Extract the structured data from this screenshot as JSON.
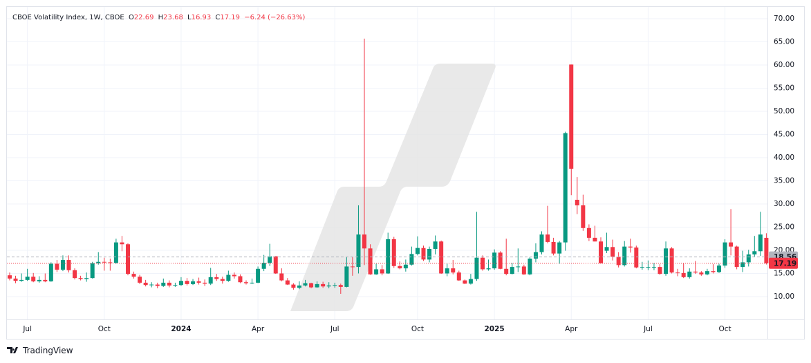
{
  "chart_data": {
    "type": "candlestick",
    "title": "CBOE Volatility Index, 1W, CBOE",
    "ohlc_labels": [
      "O",
      "H",
      "L",
      "C"
    ],
    "ohlc_values": [
      22.69,
      23.68,
      16.93,
      17.19
    ],
    "change": "−6.24 (−26.63%)",
    "categories": [
      null,
      null,
      null,
      "Jul",
      null,
      null,
      null,
      null,
      null,
      null,
      null,
      null,
      null,
      null,
      null,
      null,
      "Oct",
      null,
      null,
      null,
      null,
      null,
      null,
      null,
      null,
      null,
      null,
      null,
      null,
      "2024",
      null,
      null,
      null,
      null,
      null,
      null,
      null,
      null,
      null,
      null,
      null,
      null,
      "Apr",
      null,
      null,
      null,
      null,
      null,
      null,
      null,
      null,
      null,
      null,
      null,
      null,
      "Jul",
      null,
      null,
      null,
      null,
      null,
      null,
      null,
      null,
      null,
      null,
      null,
      null,
      null,
      "Oct",
      null,
      null,
      null,
      null,
      null,
      null,
      null,
      null,
      null,
      null,
      null,
      null,
      "2025",
      null,
      null,
      null,
      null,
      null,
      null,
      null,
      null,
      null,
      null,
      null,
      null,
      "Apr",
      null,
      null,
      null,
      null,
      null,
      null,
      null,
      null,
      null,
      null,
      null,
      null,
      "Jul",
      null,
      null,
      null,
      null,
      null,
      null,
      null,
      null,
      null,
      null,
      null,
      null,
      "Oct",
      null,
      null,
      null,
      null,
      null,
      null,
      null
    ],
    "open": [
      14.6,
      13.9,
      13.4,
      13.6,
      14.3,
      13.3,
      13.6,
      13.3,
      17.1,
      15.8,
      17.9,
      15.7,
      14.0,
      13.8,
      14.0,
      17.2,
      17.5,
      17.4,
      17.3,
      21.7,
      21.3,
      14.9,
      14.3,
      13.0,
      12.5,
      12.6,
      12.3,
      13.0,
      12.4,
      12.5,
      13.4,
      12.7,
      13.3,
      13.0,
      12.8,
      14.2,
      13.8,
      13.4,
      14.7,
      14.4,
      13.1,
      12.9,
      13.0,
      16.0,
      17.3,
      18.7,
      15.0,
      13.5,
      12.6,
      11.9,
      12.4,
      12.9,
      12.0,
      12.7,
      12.2,
      12.4,
      12.5,
      12.1,
      16.5,
      16.4,
      23.4,
      20.4,
      14.8,
      15.9,
      15.0,
      22.4,
      16.6,
      16.1,
      16.9,
      19.2,
      20.5,
      18.0,
      20.3,
      21.9,
      15.0,
      16.1,
      15.2,
      13.5,
      12.8,
      13.8,
      18.4,
      15.9,
      16.1,
      19.5,
      16.0,
      14.9,
      16.4,
      16.5,
      14.8,
      18.2,
      19.6,
      23.4,
      21.8,
      19.3,
      21.7,
      60.1,
      30.9,
      29.7,
      24.8,
      22.7,
      21.9,
      19.9,
      20.7,
      18.6,
      16.8,
      20.8,
      20.6,
      16.3,
      16.4,
      16.4,
      16.4,
      14.9,
      20.4,
      15.2,
      15.1,
      14.2,
      15.4,
      15.2,
      14.8,
      15.5,
      15.3,
      16.7,
      21.7,
      20.8,
      16.4,
      17.4,
      19.1,
      19.8,
      22.69
    ],
    "high": [
      15.2,
      14.5,
      15.0,
      16.0,
      15.1,
      14.4,
      15.0,
      17.4,
      17.9,
      18.9,
      18.9,
      16.1,
      14.5,
      15.2,
      17.5,
      19.6,
      18.4,
      18.2,
      22.5,
      23.1,
      21.5,
      15.4,
      14.7,
      13.6,
      13.1,
      13.0,
      13.9,
      13.5,
      13.0,
      14.2,
      14.0,
      13.8,
      14.1,
      13.7,
      16.2,
      14.9,
      14.3,
      15.6,
      15.2,
      14.8,
      13.5,
      13.9,
      16.5,
      19.0,
      21.4,
      18.8,
      16.1,
      14.0,
      12.9,
      13.3,
      13.6,
      13.0,
      13.3,
      13.2,
      13.1,
      13.0,
      12.8,
      18.5,
      18.5,
      29.7,
      65.7,
      21.3,
      17.1,
      16.8,
      23.8,
      22.9,
      17.6,
      18.0,
      20.8,
      23.0,
      21.0,
      20.8,
      23.2,
      22.1,
      17.1,
      17.9,
      15.6,
      13.7,
      14.9,
      28.3,
      18.9,
      18.0,
      20.2,
      19.8,
      22.5,
      17.3,
      20.4,
      16.9,
      18.5,
      21.5,
      24.1,
      29.6,
      22.7,
      22.0,
      45.6,
      60.1,
      35.8,
      32.0,
      25.6,
      25.3,
      22.8,
      23.8,
      22.3,
      19.6,
      22.0,
      22.5,
      21.0,
      17.5,
      17.8,
      17.3,
      17.0,
      21.9,
      20.7,
      16.0,
      17.2,
      16.1,
      17.7,
      15.5,
      16.0,
      17.0,
      17.1,
      22.4,
      28.9,
      21.0,
      19.9,
      20.1,
      23.1,
      28.3,
      23.68
    ],
    "low": [
      13.5,
      12.9,
      13.2,
      13.4,
      13.1,
      13.0,
      13.1,
      13.2,
      15.3,
      15.5,
      15.2,
      13.7,
      13.5,
      13.2,
      13.9,
      16.9,
      15.6,
      15.6,
      17.1,
      19.8,
      14.6,
      13.9,
      12.7,
      12.2,
      12.0,
      11.8,
      12.1,
      12.0,
      12.1,
      12.3,
      12.4,
      12.5,
      12.6,
      12.3,
      12.5,
      13.4,
      12.8,
      13.2,
      13.9,
      12.9,
      12.6,
      12.7,
      12.9,
      15.5,
      16.6,
      14.9,
      13.3,
      12.5,
      11.5,
      11.6,
      12.2,
      11.8,
      11.9,
      11.9,
      11.8,
      11.9,
      10.6,
      12.0,
      14.5,
      15.0,
      16.8,
      14.7,
      14.7,
      14.6,
      14.9,
      16.2,
      15.9,
      15.4,
      16.7,
      18.9,
      17.7,
      17.4,
      19.1,
      14.9,
      14.4,
      14.8,
      13.4,
      12.7,
      12.6,
      13.4,
      15.6,
      15.6,
      15.8,
      15.9,
      14.6,
      14.8,
      15.3,
      14.7,
      14.6,
      17.4,
      19.1,
      21.5,
      18.9,
      17.1,
      19.9,
      31.9,
      27.8,
      24.2,
      22.0,
      21.9,
      17.2,
      19.4,
      17.8,
      16.3,
      16.5,
      19.5,
      16.1,
      15.8,
      15.7,
      15.7,
      14.7,
      14.5,
      15.0,
      14.4,
      14.0,
      13.9,
      14.9,
      14.5,
      14.6,
      15.0,
      15.1,
      16.2,
      18.9,
      15.9,
      15.3,
      16.5,
      18.6,
      18.8,
      16.93
    ],
    "close": [
      13.9,
      13.4,
      13.6,
      14.3,
      13.3,
      13.6,
      13.3,
      17.1,
      15.8,
      17.9,
      15.7,
      14.0,
      13.8,
      14.0,
      17.2,
      17.5,
      17.4,
      17.3,
      21.7,
      21.3,
      14.9,
      14.3,
      13.0,
      12.5,
      12.6,
      12.3,
      13.0,
      12.4,
      12.5,
      13.4,
      12.7,
      13.3,
      13.0,
      12.8,
      14.2,
      13.8,
      13.4,
      14.7,
      14.4,
      13.1,
      12.9,
      13.0,
      16.0,
      17.3,
      18.7,
      15.0,
      13.5,
      12.6,
      11.9,
      12.4,
      12.9,
      12.0,
      12.7,
      12.2,
      12.4,
      12.5,
      12.1,
      16.5,
      16.4,
      23.4,
      20.4,
      14.8,
      15.9,
      15.0,
      22.4,
      16.6,
      16.1,
      16.9,
      19.2,
      20.5,
      18.0,
      20.3,
      21.9,
      15.0,
      16.1,
      15.2,
      13.5,
      12.8,
      13.8,
      18.4,
      15.9,
      16.1,
      19.5,
      16.0,
      14.9,
      16.4,
      16.5,
      14.8,
      18.2,
      19.6,
      23.4,
      21.8,
      19.3,
      21.7,
      45.3,
      37.6,
      29.7,
      24.8,
      22.7,
      21.9,
      17.2,
      20.7,
      18.6,
      16.8,
      20.8,
      20.6,
      16.3,
      16.4,
      16.4,
      16.4,
      14.9,
      20.4,
      15.2,
      15.1,
      14.2,
      15.4,
      15.2,
      14.8,
      15.5,
      15.3,
      16.7,
      21.7,
      20.8,
      16.4,
      17.4,
      19.1,
      19.8,
      23.4,
      17.19
    ],
    "up_color": "#089981",
    "down_color": "#f23645",
    "ylim": [
      5.07,
      72.54
    ],
    "yticks": [
      {
        "value": 10,
        "label": "10.00"
      },
      {
        "value": 15,
        "label": "15.00"
      },
      {
        "value": 20,
        "label": "20.00"
      },
      {
        "value": 25,
        "label": "25.00"
      },
      {
        "value": 30,
        "label": "30.00"
      },
      {
        "value": 35,
        "label": "35.00"
      },
      {
        "value": 40,
        "label": "40.00"
      },
      {
        "value": 45,
        "label": "45.00"
      },
      {
        "value": 50,
        "label": "50.00"
      },
      {
        "value": 55,
        "label": "55.00"
      },
      {
        "value": 60,
        "label": "60.00"
      },
      {
        "value": 65,
        "label": "65.00"
      },
      {
        "value": 70,
        "label": "70.00"
      }
    ],
    "grid": true,
    "price_lines": [
      {
        "value": 18.56,
        "color": "#b2b5be"
      },
      {
        "value": 17.19,
        "color": "#f23645"
      }
    ]
  },
  "footer": "TradingView"
}
